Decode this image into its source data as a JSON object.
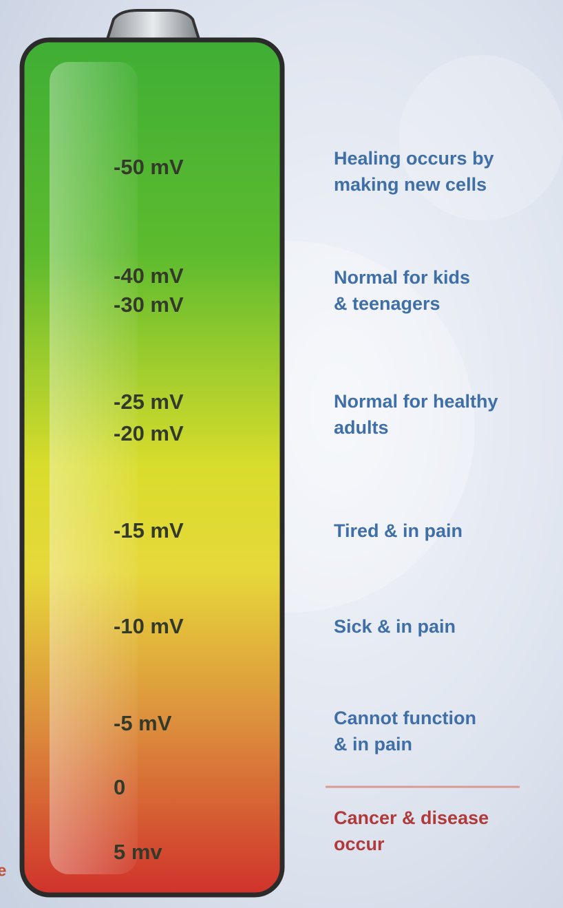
{
  "battery": {
    "voltages": [
      "-50 mV",
      "-40 mV",
      "-30 mV",
      "-25 mV",
      "-20 mV",
      "-15 mV",
      "-10 mV",
      "-5 mV",
      "0",
      "5 mv"
    ],
    "descriptions": [
      [
        "Healing occurs by",
        "making new cells"
      ],
      [
        "Normal for kids",
        "& teenagers"
      ],
      [
        "Normal for healthy",
        "adults"
      ],
      [
        "Tired & in pain"
      ],
      [
        "Sick & in pain"
      ],
      [
        "Cannot function",
        "& in pain"
      ],
      [
        "Cancer & disease",
        "occur"
      ]
    ]
  },
  "edge_fragment": "e"
}
